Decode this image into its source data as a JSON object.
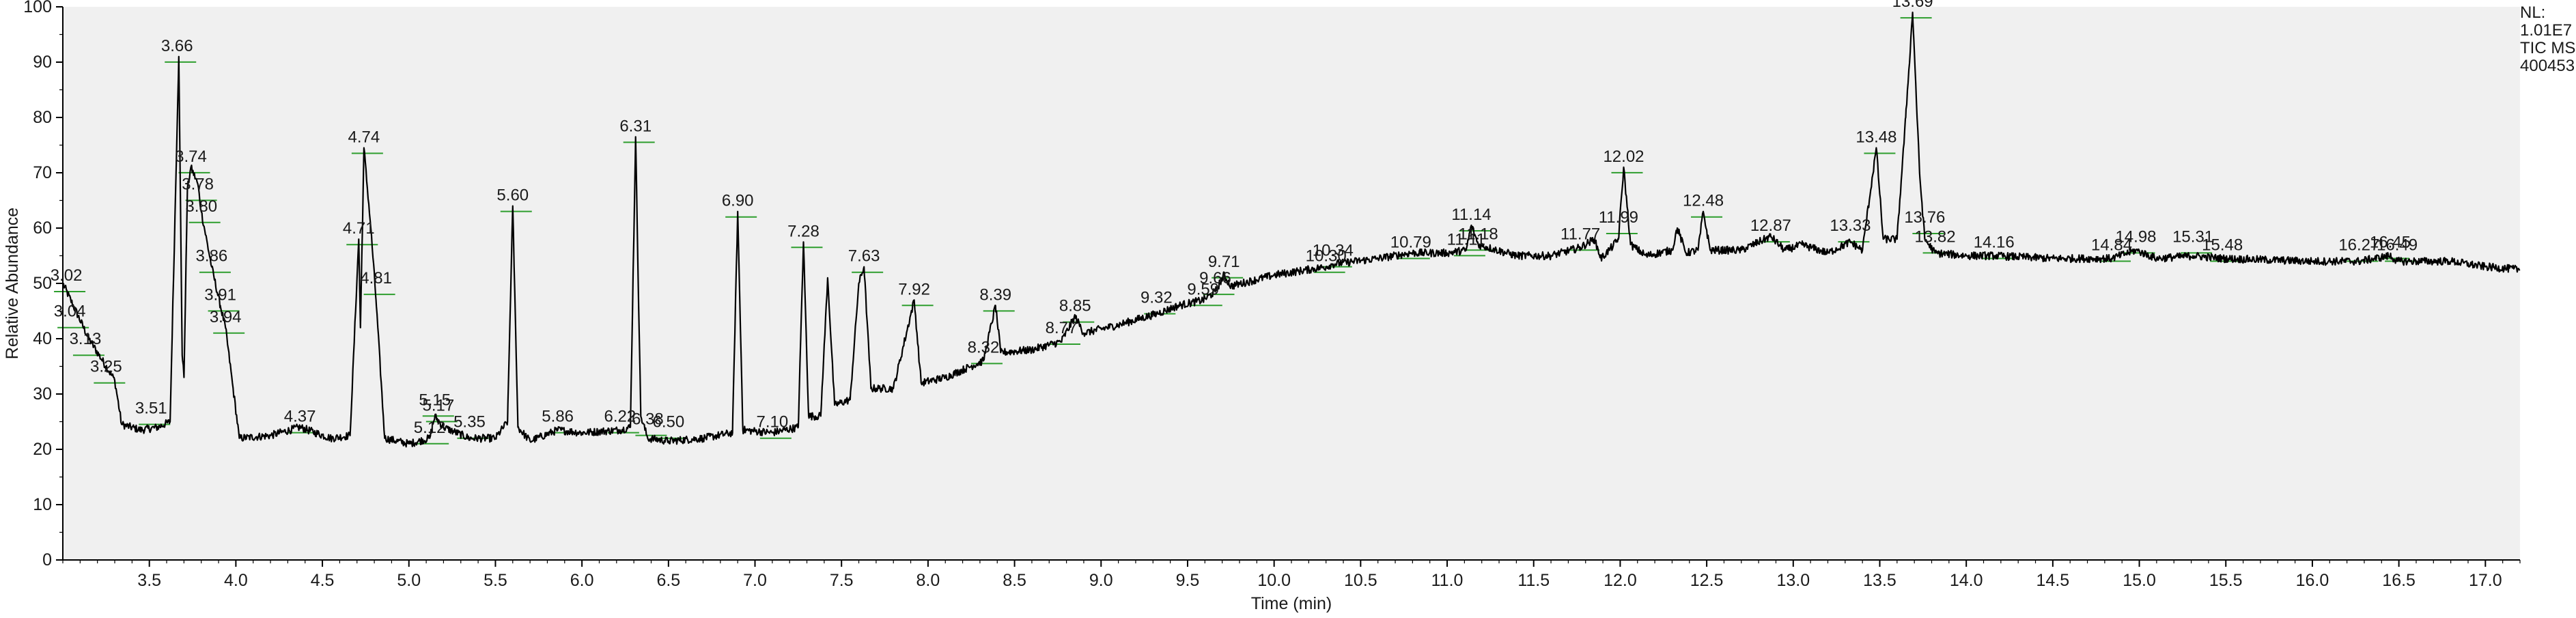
{
  "chart_data": {
    "type": "line",
    "title": "",
    "xlabel": "Time (min)",
    "ylabel": "Relative Abundance",
    "xlim": [
      3.0,
      17.2
    ],
    "ylim": [
      0,
      100
    ],
    "x_ticks": [
      3.5,
      4.0,
      4.5,
      5.0,
      5.5,
      6.0,
      6.5,
      7.0,
      7.5,
      8.0,
      8.5,
      9.0,
      9.5,
      10.0,
      10.5,
      11.0,
      11.5,
      12.0,
      12.5,
      13.0,
      13.5,
      14.0,
      14.5,
      15.0,
      15.5,
      16.0,
      16.5,
      17.0
    ],
    "x_tick_labels": [
      "3.5",
      "4.0",
      "4.5",
      "5.0",
      "5.5",
      "6.0",
      "6.5",
      "7.0",
      "7.5",
      "8.0",
      "8.5",
      "9.0",
      "9.5",
      "10.0",
      "10.5",
      "11.0",
      "11.5",
      "12.0",
      "12.5",
      "13.0",
      "13.5",
      "14.0",
      "14.5",
      "15.0",
      "15.5",
      "16.0",
      "16.5",
      "17.0"
    ],
    "y_ticks": [
      0,
      10,
      20,
      30,
      40,
      50,
      60,
      70,
      80,
      90,
      100
    ],
    "y_tick_labels": [
      "0",
      "10",
      "20",
      "30",
      "40",
      "50",
      "60",
      "70",
      "80",
      "90",
      "100"
    ],
    "plot_background": "#f0f0f0",
    "trace_color": "#000000",
    "baseline_color": "#2e9e2e",
    "grid": false,
    "legend": "none",
    "info_label": {
      "lines": [
        "NL:",
        "1.01E7",
        "TIC  MS",
        "400453"
      ],
      "position": "top-right"
    },
    "baseline": [
      [
        3.0,
        50.0
      ],
      [
        3.15,
        40.0
      ],
      [
        3.3,
        32.5
      ],
      [
        3.34,
        24.5
      ],
      [
        3.45,
        23.5
      ],
      [
        3.55,
        24.0
      ],
      [
        3.62,
        25.0
      ],
      [
        3.67,
        91.0
      ],
      [
        3.69,
        37.0
      ],
      [
        3.7,
        33.0
      ],
      [
        3.72,
        67.0
      ],
      [
        3.74,
        71.0
      ],
      [
        3.78,
        68.0
      ],
      [
        3.8,
        63.0
      ],
      [
        3.86,
        53.0
      ],
      [
        3.91,
        46.0
      ],
      [
        3.94,
        42.0
      ],
      [
        3.98,
        32.0
      ],
      [
        4.02,
        22.0
      ],
      [
        4.2,
        22.5
      ],
      [
        4.37,
        24.0
      ],
      [
        4.55,
        22.0
      ],
      [
        4.66,
        22.5
      ],
      [
        4.71,
        58.0
      ],
      [
        4.72,
        42.0
      ],
      [
        4.74,
        74.5
      ],
      [
        4.78,
        60.0
      ],
      [
        4.81,
        47.0
      ],
      [
        4.86,
        22.0
      ],
      [
        5.0,
        21.0
      ],
      [
        5.12,
        22.0
      ],
      [
        5.15,
        26.0
      ],
      [
        5.2,
        24.0
      ],
      [
        5.35,
        22.0
      ],
      [
        5.5,
        22.0
      ],
      [
        5.57,
        25.0
      ],
      [
        5.6,
        64.0
      ],
      [
        5.63,
        24.0
      ],
      [
        5.7,
        21.5
      ],
      [
        5.86,
        23.5
      ],
      [
        6.0,
        23.0
      ],
      [
        6.22,
        23.5
      ],
      [
        6.28,
        24.0
      ],
      [
        6.31,
        76.5
      ],
      [
        6.34,
        26.0
      ],
      [
        6.38,
        22.0
      ],
      [
        6.5,
        21.5
      ],
      [
        6.7,
        22.0
      ],
      [
        6.87,
        23.0
      ],
      [
        6.9,
        63.0
      ],
      [
        6.93,
        23.5
      ],
      [
        7.1,
        23.0
      ],
      [
        7.25,
        24.0
      ],
      [
        7.28,
        57.5
      ],
      [
        7.31,
        26.0
      ],
      [
        7.38,
        26.0
      ],
      [
        7.42,
        51.0
      ],
      [
        7.46,
        28.0
      ],
      [
        7.55,
        29.0
      ],
      [
        7.6,
        50.0
      ],
      [
        7.63,
        53.0
      ],
      [
        7.67,
        31.0
      ],
      [
        7.8,
        31.0
      ],
      [
        7.92,
        47.0
      ],
      [
        7.96,
        32.0
      ],
      [
        8.1,
        33.0
      ],
      [
        8.32,
        36.0
      ],
      [
        8.39,
        46.0
      ],
      [
        8.42,
        37.5
      ],
      [
        8.6,
        38.0
      ],
      [
        8.77,
        39.5
      ],
      [
        8.85,
        44.0
      ],
      [
        8.9,
        41.0
      ],
      [
        9.1,
        42.5
      ],
      [
        9.32,
        44.5
      ],
      [
        9.45,
        46.0
      ],
      [
        9.59,
        47.0
      ],
      [
        9.66,
        48.5
      ],
      [
        9.71,
        51.5
      ],
      [
        9.75,
        49.5
      ],
      [
        10.0,
        51.5
      ],
      [
        10.3,
        53.0
      ],
      [
        10.34,
        53.5
      ],
      [
        10.6,
        54.5
      ],
      [
        10.79,
        55.5
      ],
      [
        11.0,
        55.5
      ],
      [
        11.11,
        56.0
      ],
      [
        11.14,
        60.5
      ],
      [
        11.18,
        57.0
      ],
      [
        11.4,
        55.0
      ],
      [
        11.6,
        55.0
      ],
      [
        11.77,
        56.5
      ],
      [
        11.85,
        58.0
      ],
      [
        11.89,
        54.5
      ],
      [
        11.95,
        56.5
      ],
      [
        11.99,
        58.0
      ],
      [
        12.02,
        71.0
      ],
      [
        12.06,
        57.0
      ],
      [
        12.15,
        55.0
      ],
      [
        12.3,
        56.0
      ],
      [
        12.33,
        60.0
      ],
      [
        12.38,
        55.5
      ],
      [
        12.45,
        56.0
      ],
      [
        12.48,
        63.0
      ],
      [
        12.52,
        56.0
      ],
      [
        12.7,
        56.0
      ],
      [
        12.87,
        58.5
      ],
      [
        12.95,
        56.0
      ],
      [
        13.05,
        57.0
      ],
      [
        13.2,
        55.5
      ],
      [
        13.33,
        57.5
      ],
      [
        13.4,
        56.0
      ],
      [
        13.48,
        74.5
      ],
      [
        13.52,
        58.0
      ],
      [
        13.6,
        58.0
      ],
      [
        13.65,
        80.0
      ],
      [
        13.69,
        99.0
      ],
      [
        13.73,
        70.0
      ],
      [
        13.76,
        58.0
      ],
      [
        13.82,
        55.5
      ],
      [
        14.0,
        55.0
      ],
      [
        14.16,
        55.0
      ],
      [
        14.5,
        54.5
      ],
      [
        14.84,
        54.5
      ],
      [
        14.98,
        56.0
      ],
      [
        15.1,
        54.5
      ],
      [
        15.31,
        55.0
      ],
      [
        15.48,
        54.5
      ],
      [
        16.0,
        54.0
      ],
      [
        16.27,
        54.0
      ],
      [
        16.45,
        55.0
      ],
      [
        16.49,
        54.0
      ],
      [
        16.8,
        54.0
      ],
      [
        17.0,
        53.0
      ],
      [
        17.2,
        52.5
      ]
    ],
    "peaks": [
      {
        "label": "3.02",
        "x": 3.02,
        "y": 49.5
      },
      {
        "label": "3.04",
        "x": 3.04,
        "y": 43.0
      },
      {
        "label": "3.13",
        "x": 3.13,
        "y": 38.0
      },
      {
        "label": "3.25",
        "x": 3.25,
        "y": 33.0
      },
      {
        "label": "3.51",
        "x": 3.51,
        "y": 25.5
      },
      {
        "label": "3.66",
        "x": 3.66,
        "y": 91.0
      },
      {
        "label": "3.74",
        "x": 3.74,
        "y": 71.0
      },
      {
        "label": "3.78",
        "x": 3.78,
        "y": 66.0
      },
      {
        "label": "3.80",
        "x": 3.8,
        "y": 62.0
      },
      {
        "label": "3.86",
        "x": 3.86,
        "y": 53.0
      },
      {
        "label": "3.91",
        "x": 3.91,
        "y": 46.0
      },
      {
        "label": "3.94",
        "x": 3.94,
        "y": 42.0
      },
      {
        "label": "4.37",
        "x": 4.37,
        "y": 24.0
      },
      {
        "label": "4.71",
        "x": 4.71,
        "y": 58.0
      },
      {
        "label": "4.74",
        "x": 4.74,
        "y": 74.5
      },
      {
        "label": "4.81",
        "x": 4.81,
        "y": 49.0
      },
      {
        "label": "5.12",
        "x": 5.12,
        "y": 22.0
      },
      {
        "label": "5.15",
        "x": 5.15,
        "y": 27.0
      },
      {
        "label": "5.17",
        "x": 5.17,
        "y": 26.0
      },
      {
        "label": "5.35",
        "x": 5.35,
        "y": 23.0
      },
      {
        "label": "5.60",
        "x": 5.6,
        "y": 64.0
      },
      {
        "label": "5.86",
        "x": 5.86,
        "y": 24.0
      },
      {
        "label": "6.22",
        "x": 6.22,
        "y": 24.0
      },
      {
        "label": "6.31",
        "x": 6.31,
        "y": 76.5
      },
      {
        "label": "6.38",
        "x": 6.38,
        "y": 23.5
      },
      {
        "label": "6.50",
        "x": 6.5,
        "y": 23.0
      },
      {
        "label": "6.90",
        "x": 6.9,
        "y": 63.0
      },
      {
        "label": "7.10",
        "x": 7.1,
        "y": 23.0
      },
      {
        "label": "7.28",
        "x": 7.28,
        "y": 57.5
      },
      {
        "label": "7.63",
        "x": 7.63,
        "y": 53.0
      },
      {
        "label": "7.92",
        "x": 7.92,
        "y": 47.0
      },
      {
        "label": "8.32",
        "x": 8.32,
        "y": 36.5
      },
      {
        "label": "8.39",
        "x": 8.39,
        "y": 46.0
      },
      {
        "label": "8.77",
        "x": 8.77,
        "y": 40.0
      },
      {
        "label": "8.85",
        "x": 8.85,
        "y": 44.0
      },
      {
        "label": "9.32",
        "x": 9.32,
        "y": 45.5
      },
      {
        "label": "9.59",
        "x": 9.59,
        "y": 47.0
      },
      {
        "label": "9.66",
        "x": 9.66,
        "y": 49.0
      },
      {
        "label": "9.71",
        "x": 9.71,
        "y": 52.0
      },
      {
        "label": "10.30",
        "x": 10.3,
        "y": 53.0
      },
      {
        "label": "10.34",
        "x": 10.34,
        "y": 54.0
      },
      {
        "label": "10.79",
        "x": 10.79,
        "y": 55.5
      },
      {
        "label": "11.11",
        "x": 11.11,
        "y": 56.0
      },
      {
        "label": "11.14",
        "x": 11.14,
        "y": 60.5
      },
      {
        "label": "11.18",
        "x": 11.18,
        "y": 57.0
      },
      {
        "label": "11.77",
        "x": 11.77,
        "y": 57.0
      },
      {
        "label": "11.99",
        "x": 11.99,
        "y": 60.0
      },
      {
        "label": "12.02",
        "x": 12.02,
        "y": 71.0
      },
      {
        "label": "12.48",
        "x": 12.48,
        "y": 63.0
      },
      {
        "label": "12.87",
        "x": 12.87,
        "y": 58.5
      },
      {
        "label": "13.33",
        "x": 13.33,
        "y": 58.5
      },
      {
        "label": "13.48",
        "x": 13.48,
        "y": 74.5
      },
      {
        "label": "13.69",
        "x": 13.69,
        "y": 99.0
      },
      {
        "label": "13.76",
        "x": 13.76,
        "y": 60.0
      },
      {
        "label": "13.82",
        "x": 13.82,
        "y": 56.5
      },
      {
        "label": "14.16",
        "x": 14.16,
        "y": 55.5
      },
      {
        "label": "14.84",
        "x": 14.84,
        "y": 55.0
      },
      {
        "label": "14.98",
        "x": 14.98,
        "y": 56.5
      },
      {
        "label": "15.31",
        "x": 15.31,
        "y": 56.5
      },
      {
        "label": "15.48",
        "x": 15.48,
        "y": 55.0
      },
      {
        "label": "16.27",
        "x": 16.27,
        "y": 55.0
      },
      {
        "label": "16.45",
        "x": 16.45,
        "y": 55.5
      },
      {
        "label": "16.49",
        "x": 16.49,
        "y": 55.0
      }
    ]
  }
}
